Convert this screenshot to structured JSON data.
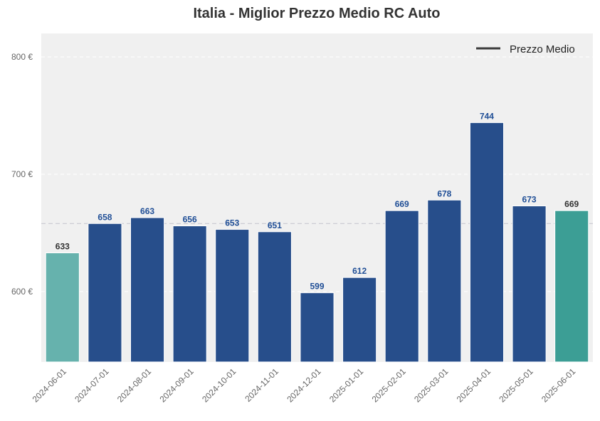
{
  "chart_data": {
    "type": "bar",
    "title": "Italia - Miglior Prezzo Medio RC Auto",
    "xlabel": "",
    "ylabel": "",
    "categories": [
      "2024-06-01",
      "2024-07-01",
      "2024-08-01",
      "2024-09-01",
      "2024-10-01",
      "2024-11-01",
      "2024-12-01",
      "2025-01-01",
      "2025-02-01",
      "2025-03-01",
      "2025-04-01",
      "2025-05-01",
      "2025-06-01"
    ],
    "values": [
      633,
      658,
      663,
      656,
      653,
      651,
      599,
      612,
      669,
      678,
      744,
      673,
      669
    ],
    "value_labels": [
      "633",
      "658",
      "663",
      "656",
      "653",
      "651",
      "599",
      "612",
      "669",
      "678",
      "744",
      "673",
      "669"
    ],
    "bar_colors": [
      "#66b2ad",
      "#274e8b",
      "#274e8b",
      "#274e8b",
      "#274e8b",
      "#274e8b",
      "#274e8b",
      "#274e8b",
      "#274e8b",
      "#274e8b",
      "#274e8b",
      "#274e8b",
      "#3c9e95"
    ],
    "label_colors": [
      "#333333",
      "#1f4e96",
      "#1f4e96",
      "#1f4e96",
      "#1f4e96",
      "#1f4e96",
      "#1f4e96",
      "#1f4e96",
      "#1f4e96",
      "#1f4e96",
      "#1f4e96",
      "#1f4e96",
      "#333333"
    ],
    "ylim": [
      540,
      820
    ],
    "yticks": [
      600,
      700,
      800
    ],
    "ytick_labels": [
      "600 €",
      "700 €",
      "800 €"
    ],
    "mean_value": 658,
    "mean_line_color": "#c8c8d0",
    "legend": {
      "label": "Prezzo Medio",
      "position": "top-right"
    },
    "grid": true,
    "background_color": "#f0f0f0"
  }
}
